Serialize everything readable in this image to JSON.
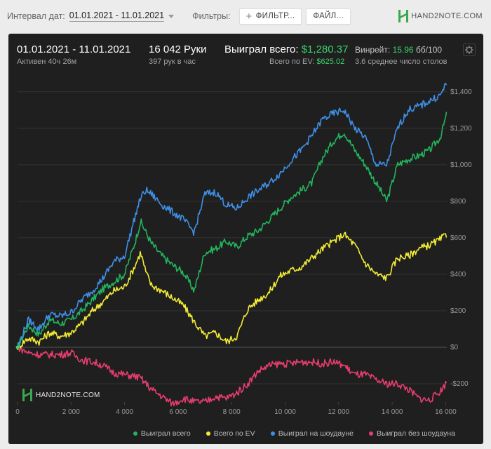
{
  "topbar": {
    "date_label": "Интервал дат:",
    "date_range": "01.01.2021 - 11.01.2021",
    "filters_label": "Фильтры:",
    "filter_button": "ФИЛЬТР...",
    "file_button": "ФАЙЛ...",
    "logo_text": "HAND2NOTE.COM"
  },
  "header": {
    "period": "01.01.2021 - 11.01.2021",
    "active": "Активен 40ч 26м",
    "hands": "16 042 Руки",
    "hands_per_hour": "397 рук в час",
    "won_total_label": "Выиграл всего:",
    "won_total_value": "$1,280.37",
    "ev_label": "Всего по EV:",
    "ev_value": "$625.02",
    "winrate_label": "Винрейт:",
    "winrate_value": "15.96",
    "winrate_unit": "бб/100",
    "tables": "3.6 среднее число столов"
  },
  "watermark": "HAND2NOTE.COM",
  "colors": {
    "won": "#22b55e",
    "ev": "#f2ec35",
    "showdown": "#3f8fe8",
    "no_showdown": "#e63d6e"
  },
  "chart_data": {
    "type": "line",
    "xlim": [
      0,
      16042
    ],
    "ylim": [
      -300,
      1480
    ],
    "x_ticks": [
      0,
      2000,
      4000,
      6000,
      8000,
      10000,
      12000,
      14000,
      16000
    ],
    "x_tick_labels": [
      "0",
      "2 000",
      "4 000",
      "6 000",
      "8 000",
      "10 000",
      "12 000",
      "14 000",
      "16 000"
    ],
    "y_ticks": [
      -200,
      0,
      200,
      400,
      600,
      800,
      1000,
      1200,
      1400
    ],
    "y_tick_labels": [
      "-$200",
      "$0",
      "$200",
      "$400",
      "$600",
      "$800",
      "$1,000",
      "$1,200",
      "$1,400"
    ],
    "x": [
      0,
      400,
      800,
      1200,
      1600,
      2000,
      2400,
      2800,
      3200,
      3600,
      4000,
      4400,
      4600,
      4800,
      5000,
      5400,
      5800,
      6200,
      6600,
      7000,
      7400,
      7800,
      8200,
      8600,
      9000,
      9400,
      9800,
      10200,
      10600,
      11000,
      11400,
      11800,
      12200,
      12600,
      13000,
      13400,
      13800,
      14200,
      14600,
      15000,
      15400,
      15800,
      16042
    ],
    "series": [
      {
        "name": "Выиграл всего",
        "values": [
          0,
          120,
          70,
          150,
          130,
          150,
          200,
          260,
          320,
          360,
          400,
          580,
          690,
          630,
          570,
          500,
          450,
          410,
          310,
          520,
          540,
          580,
          550,
          610,
          640,
          700,
          760,
          820,
          860,
          900,
          1040,
          1130,
          1180,
          1080,
          1000,
          900,
          800,
          1000,
          1030,
          1050,
          1080,
          1150,
          1280
        ]
      },
      {
        "name": "Всего по EV",
        "values": [
          0,
          50,
          30,
          80,
          60,
          80,
          130,
          200,
          250,
          310,
          330,
          450,
          520,
          410,
          340,
          310,
          270,
          230,
          140,
          60,
          80,
          30,
          60,
          210,
          260,
          300,
          390,
          420,
          440,
          490,
          540,
          580,
          620,
          560,
          460,
          400,
          380,
          490,
          500,
          540,
          560,
          590,
          620
        ]
      },
      {
        "name": "Выиграл на шоудауне",
        "values": [
          0,
          150,
          100,
          180,
          170,
          190,
          260,
          310,
          380,
          470,
          500,
          720,
          820,
          860,
          840,
          780,
          740,
          700,
          630,
          840,
          850,
          780,
          760,
          820,
          860,
          900,
          950,
          1020,
          1080,
          1160,
          1250,
          1280,
          1300,
          1200,
          1150,
          1000,
          1000,
          1200,
          1300,
          1320,
          1350,
          1380,
          1450
        ]
      },
      {
        "name": "Выиграл без шоудауна",
        "values": [
          0,
          -30,
          -40,
          -40,
          -40,
          -30,
          -70,
          -80,
          -100,
          -140,
          -150,
          -160,
          -170,
          -200,
          -230,
          -270,
          -310,
          -280,
          -300,
          -300,
          -270,
          -280,
          -250,
          -200,
          -130,
          -100,
          -90,
          -90,
          -80,
          -80,
          -90,
          -80,
          -100,
          -150,
          -150,
          -180,
          -200,
          -200,
          -230,
          -280,
          -290,
          -240,
          -190
        ]
      }
    ]
  }
}
